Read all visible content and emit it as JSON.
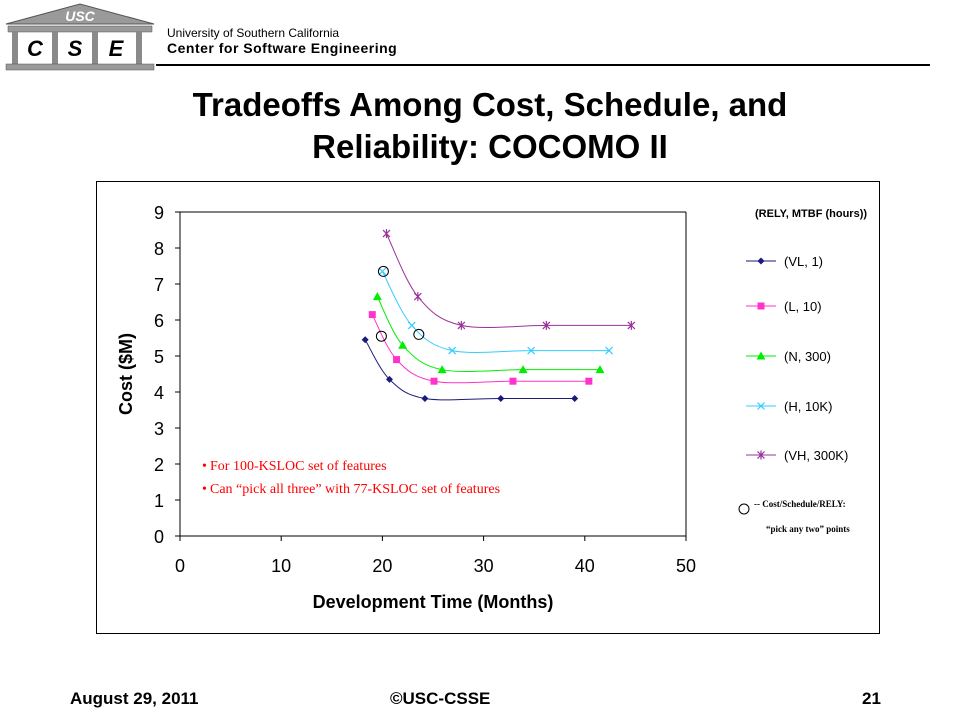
{
  "header": {
    "logo_top": "USC",
    "logo_letters": [
      "C",
      "S",
      "E"
    ],
    "university": "University of Southern California",
    "center": "Center for Software Engineering"
  },
  "title_line1": "Tradeoffs Among Cost, Schedule, and",
  "title_line2": "Reliability: COCOMO II",
  "chart_data": {
    "type": "line",
    "xlabel": "Development Time (Months)",
    "ylabel": "Cost ($M)",
    "xlim": [
      0,
      50
    ],
    "ylim": [
      0,
      9
    ],
    "xticks": [
      "0",
      "10",
      "20",
      "30",
      "40",
      "50"
    ],
    "yticks": [
      "0",
      "1",
      "2",
      "3",
      "4",
      "5",
      "6",
      "7",
      "8",
      "9"
    ],
    "grid": false,
    "legend_title": "(RELY, MTBF (hours))",
    "legend_position": "right",
    "series": [
      {
        "name": "(VL, 1)",
        "color": "#1a1a7a",
        "marker": "diamond",
        "x": [
          18.3,
          20.7,
          24.2,
          31.7,
          39.0
        ],
        "y": [
          5.45,
          4.35,
          3.82,
          3.82,
          3.82
        ]
      },
      {
        "name": "(L, 10)",
        "color": "#ff33cc",
        "marker": "square",
        "x": [
          19.0,
          21.4,
          25.1,
          32.9,
          40.4
        ],
        "y": [
          6.15,
          4.9,
          4.3,
          4.3,
          4.3
        ]
      },
      {
        "name": "(N, 300)",
        "color": "#00ee00",
        "marker": "triangle",
        "x": [
          19.5,
          22.0,
          25.9,
          33.9,
          41.5
        ],
        "y": [
          6.65,
          5.3,
          4.62,
          4.62,
          4.62
        ]
      },
      {
        "name": "(H, 10K)",
        "color": "#33ccff",
        "marker": "x",
        "x": [
          20.0,
          22.9,
          26.9,
          34.7,
          42.4
        ],
        "y": [
          7.35,
          5.85,
          5.15,
          5.15,
          5.15
        ]
      },
      {
        "name": "(VH, 300K)",
        "color": "#993399",
        "marker": "star",
        "x": [
          20.4,
          23.5,
          27.8,
          36.2,
          44.6
        ],
        "y": [
          8.4,
          6.65,
          5.85,
          5.85,
          5.85
        ]
      }
    ],
    "circled_points": [
      {
        "x": 20.1,
        "y": 7.35
      },
      {
        "x": 19.9,
        "y": 5.55
      },
      {
        "x": 23.6,
        "y": 5.6
      }
    ],
    "annotations": [
      "For 100-KSLOC set of features",
      "Can “pick all three” with 77-KSLOC set of features"
    ],
    "circle_legend_line1": "-- Cost/Schedule/RELY:",
    "circle_legend_line2": "“pick any two” points"
  },
  "footer": {
    "date": "August 29, 2011",
    "copyright": "©USC-CSSE",
    "page": "21"
  }
}
